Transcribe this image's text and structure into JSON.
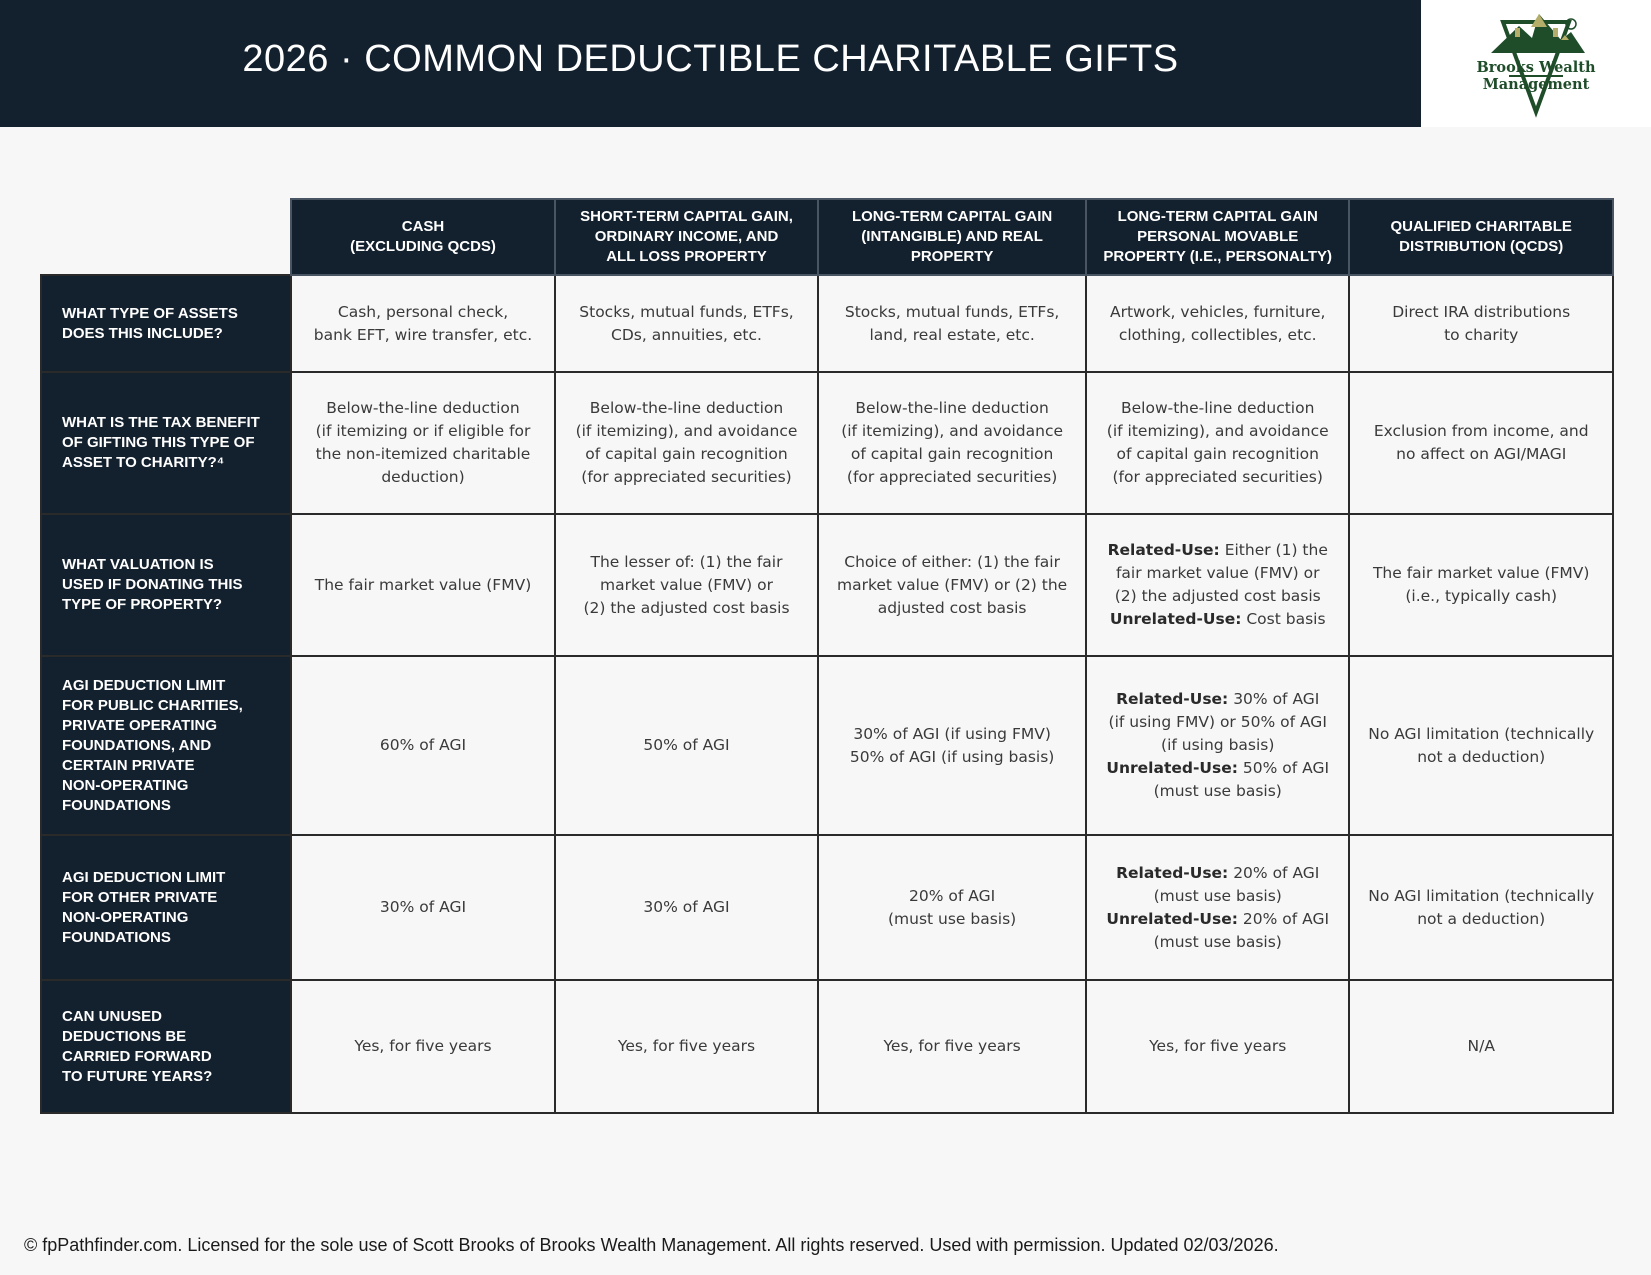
{
  "header": {
    "title": "2026 · COMMON DEDUCTIBLE CHARITABLE GIFTS",
    "logo_text": "Brooks Wealth Management",
    "logo_color": "#1f4d2a",
    "background_color": "#13202e"
  },
  "table": {
    "columns": [
      "CASH\n(EXCLUDING QCDS)",
      "SHORT-TERM CAPITAL GAIN,\nORDINARY INCOME, AND\nALL LOSS PROPERTY",
      "LONG-TERM CAPITAL GAIN\n(INTANGIBLE) AND REAL\nPROPERTY",
      "LONG-TERM CAPITAL GAIN\nPERSONAL MOVABLE\nPROPERTY (I.E., PERSONALTY)",
      "QUALIFIED CHARITABLE\nDISTRIBUTION (QCDS)"
    ],
    "rows": [
      {
        "label": "WHAT TYPE OF ASSETS\nDOES THIS INCLUDE?",
        "cells": [
          "Cash, personal check,\nbank EFT, wire transfer, etc.",
          "Stocks, mutual funds, ETFs,\nCDs, annuities, etc.",
          "Stocks, mutual funds, ETFs,\nland, real estate, etc.",
          "Artwork, vehicles, furniture,\nclothing, collectibles, etc.",
          "Direct IRA distributions\nto charity"
        ]
      },
      {
        "label": "WHAT IS THE TAX BENEFIT\nOF GIFTING THIS TYPE OF\nASSET TO CHARITY?⁴",
        "cells": [
          "Below-the-line deduction\n(if itemizing or if eligible for\nthe non-itemized charitable\ndeduction)",
          "Below-the-line deduction\n(if itemizing), and avoidance\nof capital gain recognition\n(for appreciated securities)",
          "Below-the-line deduction\n(if itemizing), and avoidance\nof capital gain recognition\n(for appreciated securities)",
          "Below-the-line deduction\n(if itemizing), and avoidance\nof capital gain recognition\n(for appreciated securities)",
          "Exclusion from income, and\nno affect on AGI/MAGI"
        ]
      },
      {
        "label": "WHAT VALUATION IS\nUSED IF DONATING THIS\nTYPE OF PROPERTY?",
        "cells": [
          "The fair market value (FMV)",
          "The lesser of: (1) the fair\nmarket value (FMV) or\n(2) the adjusted cost basis",
          "Choice of either: (1) the fair\nmarket value (FMV) or (2) the\nadjusted cost basis",
          "**Related-Use:** Either (1) the\nfair market value (FMV) or\n(2) the adjusted cost basis\n**Unrelated-Use:** Cost basis",
          "The fair market value (FMV)\n(i.e., typically cash)"
        ]
      },
      {
        "label": "AGI DEDUCTION LIMIT\nFOR PUBLIC CHARITIES,\nPRIVATE OPERATING\nFOUNDATIONS, AND\nCERTAIN PRIVATE\nNON-OPERATING\nFOUNDATIONS",
        "cells": [
          "60% of AGI",
          "50% of AGI",
          "30% of AGI (if using FMV)\n50% of AGI (if using basis)",
          "**Related-Use:** 30% of AGI\n(if using FMV) or 50% of AGI\n(if using basis)\n**Unrelated-Use:** 50% of AGI\n(must use basis)",
          "No AGI limitation (technically\nnot a deduction)"
        ]
      },
      {
        "label": "AGI DEDUCTION LIMIT\nFOR OTHER PRIVATE\nNON-OPERATING\nFOUNDATIONS",
        "cells": [
          "30% of AGI",
          "30% of AGI",
          "20% of AGI\n(must use basis)",
          "**Related-Use:** 20% of AGI\n(must use basis)\n**Unrelated-Use:** 20% of AGI\n(must use basis)",
          "No AGI limitation (technically\nnot a deduction)"
        ]
      },
      {
        "label": "CAN UNUSED\nDEDUCTIONS BE\nCARRIED FORWARD\nTO FUTURE YEARS?",
        "cells": [
          "Yes, for five years",
          "Yes, for five years",
          "Yes, for five years",
          "Yes, for five years",
          "N/A"
        ]
      }
    ]
  },
  "footer": {
    "text": "© fpPathfinder.com. Licensed for the sole use of Scott Brooks of Brooks Wealth Management. All rights reserved. Used with permission. Updated 02/03/2026."
  }
}
